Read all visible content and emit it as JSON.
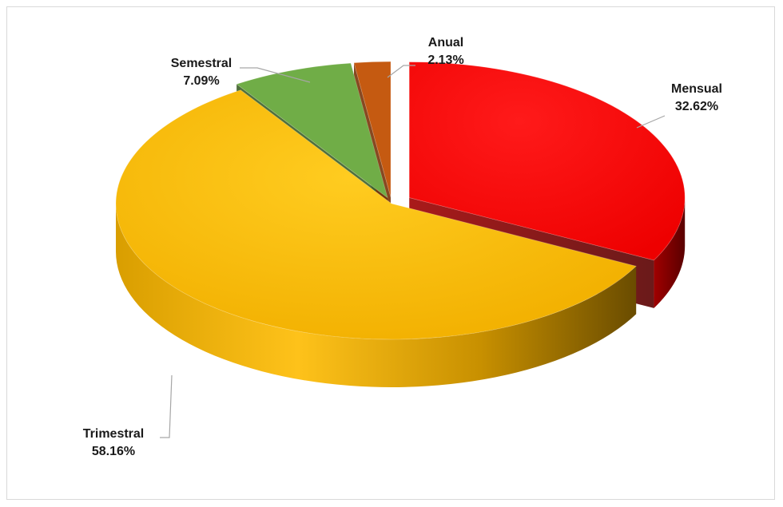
{
  "chart_data": {
    "type": "pie",
    "three_d": true,
    "exploded": true,
    "legend": "none",
    "slices": [
      {
        "name": "Mensual",
        "value": 32.62,
        "label": "32.62%",
        "color": "#ff0000"
      },
      {
        "name": "Trimestral",
        "value": 58.16,
        "label": "58.16%",
        "color": "#f7b800"
      },
      {
        "name": "Semestral",
        "value": 7.09,
        "label": "7.09%",
        "color": "#70ad47"
      },
      {
        "name": "Anual",
        "value": 2.13,
        "label": "2.13%",
        "color": "#c55a11"
      }
    ]
  }
}
